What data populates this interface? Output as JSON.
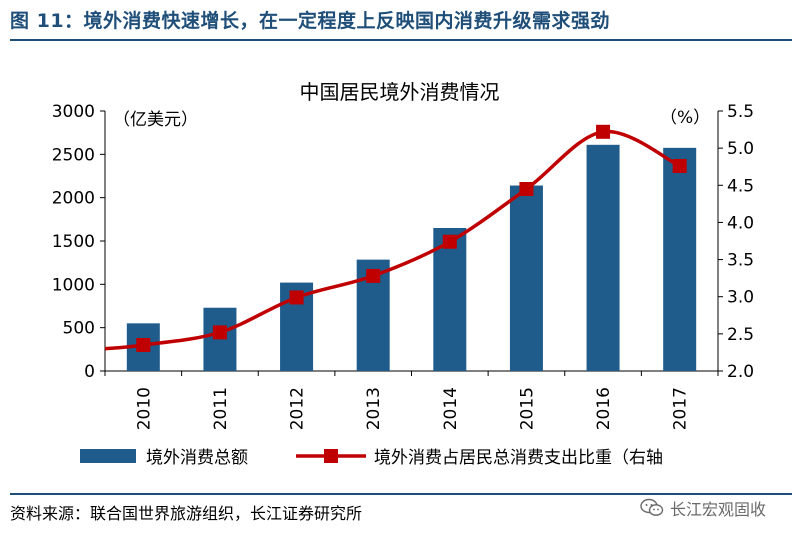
{
  "figure": {
    "title": "图 11：境外消费快速增长，在一定程度上反映国内消费升级需求强劲",
    "source": "资料来源：联合国世界旅游组织，长江证券研究所",
    "watermark": "长江宏观固收",
    "watermark_icon": "wechat-icon"
  },
  "chart_data": {
    "type": "bar",
    "title": "中国居民境外消费情况",
    "categories": [
      "2010",
      "2011",
      "2012",
      "2013",
      "2014",
      "2015",
      "2016",
      "2017"
    ],
    "series": [
      {
        "name": "境外消费总额",
        "type": "bar",
        "axis": "left",
        "color": "#1f5c8b",
        "values": [
          550,
          730,
          1020,
          1285,
          1650,
          2140,
          2610,
          2575
        ]
      },
      {
        "name": "境外消费占居民总消费支出比重（右轴",
        "type": "line",
        "axis": "right",
        "color": "#c00000",
        "marker": "square",
        "values": [
          2.35,
          2.52,
          2.99,
          3.28,
          3.74,
          4.45,
          5.22,
          4.76
        ]
      }
    ],
    "line_start_value": 2.3,
    "y_left": {
      "unit": "（亿美元）",
      "ylim": [
        0,
        3000
      ],
      "ticks": [
        0,
        500,
        1000,
        1500,
        2000,
        2500,
        3000
      ]
    },
    "y_right": {
      "unit": "（%）",
      "ylim": [
        2.0,
        5.5
      ],
      "ticks": [
        "2.0",
        "2.5",
        "3.0",
        "3.5",
        "4.0",
        "4.5",
        "5.0",
        "5.5"
      ]
    },
    "grid": false,
    "legend_position": "bottom"
  }
}
